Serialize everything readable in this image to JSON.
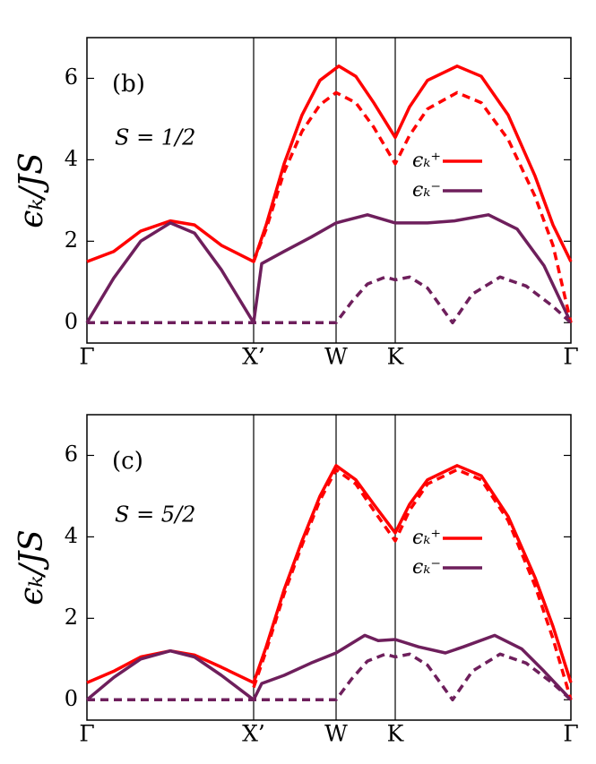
{
  "chart_data": [
    {
      "type": "line",
      "annotations": [
        "(b)",
        "S = 1/2"
      ],
      "ylabel": "ϵₖ/JS",
      "xlim": [
        0,
        5.4
      ],
      "xticks": [
        {
          "value": 0,
          "label": "Γ"
        },
        {
          "value": 1.86,
          "label": "X’"
        },
        {
          "value": 2.78,
          "label": "W"
        },
        {
          "value": 3.44,
          "label": "K"
        },
        {
          "value": 5.4,
          "label": "Γ"
        }
      ],
      "ylim": [
        -0.5,
        7
      ],
      "yticks": [
        0,
        2,
        4,
        6
      ],
      "series": [
        {
          "name": "ϵₖ⁺",
          "color": "#ff0000",
          "dashed": false,
          "x": [
            0,
            0.3,
            0.6,
            0.93,
            1.2,
            1.5,
            1.86,
            2.0,
            2.2,
            2.4,
            2.6,
            2.81,
            3.0,
            3.2,
            3.44,
            3.6,
            3.8,
            4.13,
            4.4,
            4.7,
            5.0,
            5.2,
            5.4
          ],
          "values": [
            1.5,
            1.75,
            2.25,
            2.5,
            2.4,
            1.9,
            1.5,
            2.4,
            3.9,
            5.1,
            5.95,
            6.3,
            6.05,
            5.4,
            4.55,
            5.3,
            5.95,
            6.3,
            6.05,
            5.1,
            3.6,
            2.4,
            1.5
          ]
        },
        {
          "name": "ϵₖ⁻",
          "color": "#6e1f5c",
          "dashed": false,
          "x": [
            0,
            0.3,
            0.6,
            0.93,
            1.2,
            1.5,
            1.86,
            1.95,
            2.2,
            2.5,
            2.78,
            3.13,
            3.44,
            3.8,
            4.1,
            4.48,
            4.8,
            5.1,
            5.4
          ],
          "values": [
            0,
            1.1,
            2.0,
            2.45,
            2.2,
            1.3,
            0,
            1.45,
            1.75,
            2.1,
            2.45,
            2.65,
            2.45,
            2.45,
            2.5,
            2.65,
            2.3,
            1.4,
            0
          ]
        },
        {
          "color": "#ff0000",
          "dashed": true,
          "x": [
            1.86,
            2.0,
            2.2,
            2.4,
            2.6,
            2.78,
            3.0,
            3.2,
            3.44,
            3.6,
            3.8,
            4.13,
            4.4,
            4.7,
            5.0,
            5.2,
            5.4
          ],
          "values": [
            1.5,
            2.3,
            3.7,
            4.7,
            5.35,
            5.65,
            5.4,
            4.8,
            3.9,
            4.6,
            5.25,
            5.65,
            5.4,
            4.5,
            3.1,
            1.9,
            0
          ]
        },
        {
          "color": "#6e1f5c",
          "dashed": true,
          "x": [
            0,
            2.78,
            2.95,
            3.13,
            3.33,
            3.44,
            3.6,
            3.8,
            4.08,
            4.3,
            4.61,
            4.9,
            5.2,
            5.4
          ],
          "values": [
            0,
            0,
            0.5,
            0.95,
            1.12,
            1.05,
            1.12,
            0.85,
            0,
            0.7,
            1.12,
            0.9,
            0.4,
            0
          ]
        }
      ]
    },
    {
      "type": "line",
      "annotations": [
        "(c)",
        "S = 5/2"
      ],
      "ylabel": "ϵₖ/JS",
      "xlim": [
        0,
        5.4
      ],
      "xticks": [
        {
          "value": 0,
          "label": "Γ"
        },
        {
          "value": 1.86,
          "label": "X’"
        },
        {
          "value": 2.78,
          "label": "W"
        },
        {
          "value": 3.44,
          "label": "K"
        },
        {
          "value": 5.4,
          "label": "Γ"
        }
      ],
      "ylim": [
        -0.5,
        7
      ],
      "yticks": [
        0,
        2,
        4,
        6
      ],
      "series": [
        {
          "name": "ϵₖ⁺",
          "color": "#ff0000",
          "dashed": false,
          "x": [
            0,
            0.3,
            0.6,
            0.93,
            1.2,
            1.5,
            1.86,
            2.0,
            2.2,
            2.4,
            2.6,
            2.78,
            3.0,
            3.2,
            3.44,
            3.6,
            3.8,
            4.13,
            4.4,
            4.7,
            5.0,
            5.2,
            5.4
          ],
          "values": [
            0.42,
            0.7,
            1.05,
            1.2,
            1.1,
            0.8,
            0.42,
            1.3,
            2.7,
            3.9,
            5.0,
            5.75,
            5.4,
            4.8,
            4.1,
            4.8,
            5.4,
            5.75,
            5.5,
            4.5,
            3.0,
            1.8,
            0.42
          ]
        },
        {
          "name": "ϵₖ⁻",
          "color": "#6e1f5c",
          "dashed": false,
          "x": [
            0,
            0.3,
            0.6,
            0.93,
            1.2,
            1.5,
            1.86,
            1.95,
            2.2,
            2.5,
            2.78,
            3.1,
            3.25,
            3.44,
            3.7,
            4.0,
            4.2,
            4.55,
            4.85,
            5.1,
            5.4
          ],
          "values": [
            0,
            0.55,
            1.0,
            1.2,
            1.05,
            0.6,
            0,
            0.4,
            0.6,
            0.9,
            1.15,
            1.58,
            1.45,
            1.48,
            1.3,
            1.15,
            1.3,
            1.58,
            1.25,
            0.7,
            0
          ]
        },
        {
          "color": "#ff0000",
          "dashed": true,
          "x": [
            1.86,
            2.0,
            2.2,
            2.4,
            2.6,
            2.78,
            3.0,
            3.2,
            3.44,
            3.6,
            3.8,
            4.13,
            4.4,
            4.7,
            5.0,
            5.2,
            5.4
          ],
          "values": [
            0.3,
            1.2,
            2.6,
            3.8,
            4.9,
            5.65,
            5.3,
            4.65,
            3.9,
            4.65,
            5.3,
            5.65,
            5.4,
            4.4,
            2.8,
            1.5,
            0
          ]
        },
        {
          "color": "#6e1f5c",
          "dashed": true,
          "x": [
            0,
            2.78,
            2.95,
            3.13,
            3.33,
            3.44,
            3.6,
            3.8,
            4.08,
            4.3,
            4.61,
            4.9,
            5.2,
            5.4
          ],
          "values": [
            0,
            0,
            0.5,
            0.95,
            1.12,
            1.05,
            1.12,
            0.85,
            0,
            0.7,
            1.12,
            0.9,
            0.4,
            0
          ]
        }
      ]
    }
  ]
}
